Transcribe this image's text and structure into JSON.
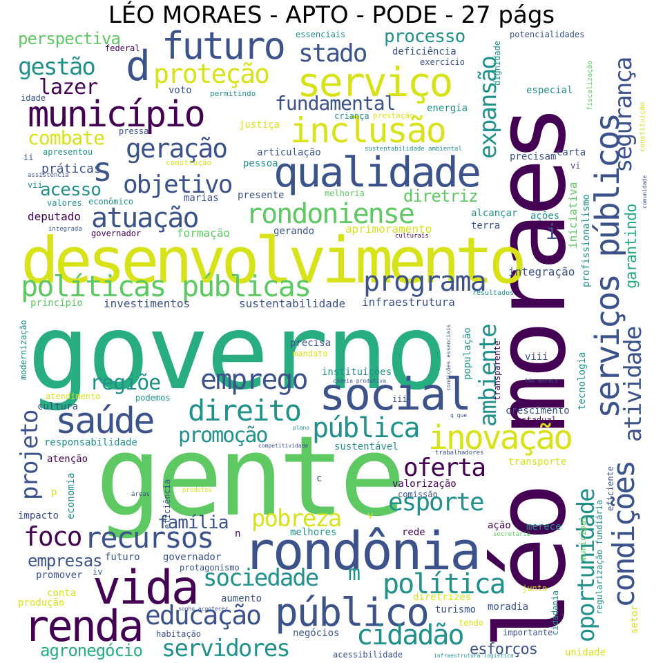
{
  "title": "LÉO MORAES - APTO - PODE - 27 págs",
  "palette": {
    "p": "#440154",
    "i": "#3b528b",
    "t": "#21918c",
    "g": "#27ad81",
    "l": "#5ec962",
    "y": "#d8e219"
  },
  "words": {
    "governo": "governo",
    "gente": "gente",
    "leo_moraes": "léo moraes",
    "desenvolvimento": "desenvolvimento",
    "rondonia": "rondônia",
    "social": "social",
    "vida": "vida",
    "renda": "renda",
    "publico": "público",
    "qualidade": "qualidade",
    "municipio": "município",
    "inclusao": "inclusão",
    "servico": "serviço",
    "futuro_top": "futuro",
    "d": "d",
    "protecao": "proteção",
    "stado": "stado",
    "processo": "processo",
    "politicas_publicas": "políticas públicas",
    "programa": "programa",
    "servicos_publicos": "serviços públicos",
    "seguranca": "segurança",
    "atividade": "atividade",
    "garantindo": "garantindo",
    "expansao": "expansão",
    "ambiente": "ambiente",
    "saude": "saúde",
    "emprego": "emprego",
    "direito": "direito",
    "publica": "pública",
    "inovacao": "inovação",
    "promocao": "promoção",
    "regiao": "regiõe",
    "oferta": "oferta",
    "esporte": "esporte",
    "pobreza": "pobreza",
    "familia": "família",
    "foco": "foco",
    "recursos": "recursos",
    "sociedade": "sociedade",
    "m": "m",
    "politica": "política",
    "educacao": "educação",
    "empresas": "empresas",
    "cidadao": "cidadão",
    "servidores": "servidores",
    "agronegocio": "agronegócio",
    "esforcos": "esforços",
    "condicoes": "condições",
    "oportunidade": "oportunidade",
    "projeto": "projeto",
    "atuacao": "atuação",
    "objetivo": "objetivo",
    "s": "s",
    "geracao": "geração",
    "combate": "combate",
    "acesso": "acesso",
    "rondoniense": "rondoniense",
    "diretriz": "diretriz",
    "fundamental": "fundamental",
    "gestao": "gestão",
    "lazer": "lazer",
    "perspectiva": "perspectiva",
    "praticas": "práticas",
    "deputado": "deputado",
    "governador": "governador",
    "formacao": "formação",
    "gerando": "gerando",
    "aprimoramento": "aprimoramento",
    "culturais": "culturais",
    "integrada": "integrada",
    "acoes": "ações",
    "terra": "terra",
    "alcancar": "alcançar",
    "iniciativa": "iniciativa",
    "i": "i",
    "profissionalismo": "profissionalismo",
    "integracao": "integração",
    "resultados": "resultados",
    "infraestrutura": "infraestrutura",
    "sustentabilidade": "sustentabilidade",
    "investimentos": "investimentos",
    "principio": "princípio",
    "modernizacao": "modernização",
    "precisa": "precisa",
    "mandato": "mandato",
    "instituicoes": "instituições",
    "cadeia_produtiva": "cadeia produtiva",
    "condicoes_essenciais": "condições essenciais",
    "populacao": "população",
    "transparente": "transparente",
    "tecnologia": "tecnologia",
    "viii": "viii",
    "leo_morais": "léo morais",
    "crescimento": "crescimento",
    "estadual": "estadual",
    "q_que": "q que",
    "atendimento": "atendimento",
    "podemos": "podemos",
    "cultura": "cultura",
    "iii": "iii",
    "plano": "plano",
    "responsabilidade": "responsabilidade",
    "competitividade": "competitividade",
    "sustentavel": "sustentável",
    "atencao": "atenção",
    "trabalhadores": "trabalhadores",
    "transporte": "transporte",
    "p": "p",
    "economia": "economia",
    "impacto": "impacto",
    "areas": "áreas",
    "produtos": "produtos",
    "eficiencia": "eficiência",
    "c": "c",
    "valorizacao": "valorização",
    "comissao": "comissão",
    "acao": "ação",
    "merece": "merece",
    "v": "v",
    "secretaria": "secretaria",
    "melhores": "melhores",
    "rede": "rede",
    "n": "n",
    "futuro_small": "futuro",
    "governador_small": "governador",
    "protagonismo": "protagonismo",
    "promover": "promover",
    "iv": "iv",
    "aumento": "aumento",
    "conta": "conta",
    "producao": "produção",
    "sonho_acontecer": "sonho acontecer",
    "diretrizes": "diretrizes",
    "junto": "junto",
    "turismo": "turismo",
    "moradia": "moradia",
    "tendo": "tendo",
    "habitacao": "habitação",
    "negocios": "negócios",
    "importante": "importante",
    "acessibilidade": "acessibilidade",
    "infraestrutura_logistica": "infraestrutura logística",
    "unidade": "unidade",
    "cidadania": "cidadania",
    "regularizacao_fundiaria": "regularização fundiária",
    "municipal": "municipal",
    "eficiente": "eficiente",
    "setor": "setor",
    "essenciais": "essenciais",
    "federal": "federal",
    "deficiencia": "deficiência",
    "exercicio": "exercício",
    "dignidade": "dignidade",
    "potencialidades": "potencialidades",
    "fiscalizacao": "fiscalização",
    "constituicao": "constituição",
    "idade": "idade",
    "voto": "voto",
    "permitindo": "permitindo",
    "especial": "especial",
    "energia": "energia",
    "pressa": "pressa",
    "justica": "justiça",
    "crianca": "criança",
    "prestacao": "prestação",
    "apresentou": "apresentou",
    "ii": "ii",
    "construcao": "construção",
    "pessoa": "pessoa",
    "articulacao": "articulação",
    "sustentabilidade_ambiental": "sustentabilidade ambiental",
    "precisam": "precisam",
    "carta": "carta",
    "vi": "vi",
    "assistencia": "assistência",
    "vii": "vii",
    "valores": "valores",
    "economico": "econômico",
    "marias": "marias",
    "presente": "presente",
    "melhoria": "melhoria",
    "comunidade": "comunidade"
  }
}
